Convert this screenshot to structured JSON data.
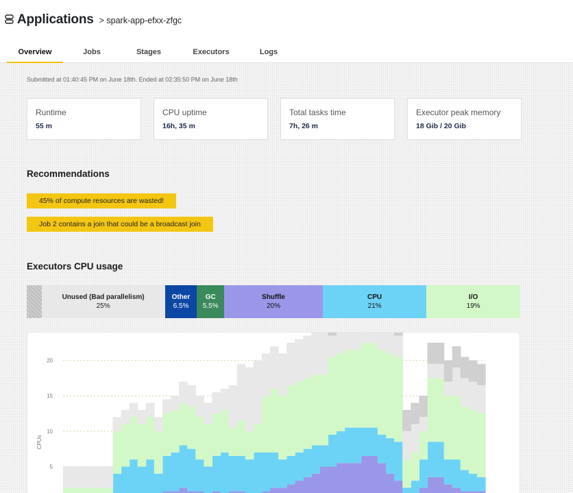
{
  "header": {
    "title": "Applications",
    "breadcrumb": "> spark-app-efxx-zfgc",
    "icon": "server-stack-icon"
  },
  "tabs": [
    {
      "label": "Overview",
      "active": true
    },
    {
      "label": "Jobs",
      "active": false
    },
    {
      "label": "Stages",
      "active": false
    },
    {
      "label": "Executors",
      "active": false
    },
    {
      "label": "Logs",
      "active": false
    }
  ],
  "submitted_text": "Submitted at 01:40:45 PM on June 18th. Ended at 02:35:50 PM on June 18th",
  "cards": [
    {
      "label": "Runtime",
      "value": "55 m"
    },
    {
      "label": "CPU uptime",
      "value": "16h, 35 m"
    },
    {
      "label": "Total tasks time",
      "value": "7h, 26 m"
    },
    {
      "label": "Executor peak memory",
      "value": "18 Gib / 20 Gib"
    }
  ],
  "recommendations": {
    "title": "Recommendations",
    "items": [
      "45% of compute resources are wasted!",
      "Job 2 contains a join that could be a broadcast join"
    ]
  },
  "cpu_usage": {
    "title": "Executors CPU usage",
    "segments": [
      {
        "name": "",
        "pct": "",
        "share": 3,
        "color": "#c8c8c8",
        "text": "#222"
      },
      {
        "name": "Unused (Bad parallelism)",
        "pct": "25%",
        "share": 25,
        "color": "#e8e8e8",
        "text": "#222"
      },
      {
        "name": "Other",
        "pct": "6.5%",
        "share": 6.5,
        "color": "#0b47a3",
        "text": "#ffffff"
      },
      {
        "name": "GC",
        "pct": "5.5%",
        "share": 5.5,
        "color": "#3a8a5c",
        "text": "#ffffff"
      },
      {
        "name": "Shuffle",
        "pct": "20%",
        "share": 20,
        "color": "#9b97e8",
        "text": "#111"
      },
      {
        "name": "CPU",
        "pct": "21%",
        "share": 21,
        "color": "#6dd3f6",
        "text": "#111"
      },
      {
        "name": "I/O",
        "pct": "19%",
        "share": 19,
        "color": "#d3f8c8",
        "text": "#111"
      }
    ]
  },
  "chart_data": {
    "type": "area",
    "ylabel": "CPUs",
    "ylim": [
      0,
      22
    ],
    "yticks": [
      5,
      10,
      15,
      20
    ],
    "grid": "dashed horizontal",
    "series": [
      {
        "name": "GC",
        "color": "#3a8a5c",
        "values": [
          0,
          0,
          0,
          0,
          0,
          0,
          0,
          0,
          0,
          0,
          0,
          0,
          0,
          0,
          0,
          0,
          0,
          0,
          0,
          0,
          0,
          0,
          0,
          0,
          0,
          0,
          0,
          0,
          0,
          0,
          0,
          0,
          0,
          0,
          0,
          0,
          0.5,
          0.5,
          0.5,
          0,
          0,
          0,
          0,
          0,
          0,
          0,
          0,
          0,
          0,
          0,
          0
        ]
      },
      {
        "name": "Shuffle",
        "color": "#9b97e8",
        "values": [
          0.5,
          0.5,
          0.5,
          0.5,
          0.5,
          0.5,
          1,
          1,
          1,
          1,
          1,
          1,
          1.5,
          1.5,
          2,
          1.5,
          1.5,
          1,
          1.5,
          1,
          1.5,
          1.5,
          1,
          1,
          1.5,
          2,
          2,
          2.5,
          3,
          3.5,
          4,
          5,
          5,
          5.5,
          5.5,
          5.5,
          6,
          6,
          5,
          4,
          3,
          1,
          1,
          2,
          3.5,
          3.5,
          2.5,
          2,
          1.5,
          1.5,
          1.5
        ]
      },
      {
        "name": "CPU",
        "color": "#6dd3f6",
        "values": [
          0.5,
          0.5,
          0.5,
          0.5,
          0.5,
          0.5,
          3,
          4,
          5,
          4,
          5,
          3,
          5,
          5.5,
          6,
          6,
          4.5,
          4,
          5,
          6,
          5,
          5,
          5,
          6,
          5.5,
          5,
          4,
          4,
          4,
          4,
          4,
          3,
          4.5,
          4.5,
          5,
          5,
          4,
          4,
          4,
          5,
          5.5,
          1,
          2,
          4,
          5,
          5,
          3.5,
          4,
          3,
          2.5,
          2
        ]
      },
      {
        "name": "I/O",
        "color": "#d3f8c8",
        "values": [
          1,
          1,
          1,
          1,
          1,
          1,
          6,
          6,
          6,
          6,
          6,
          6,
          6,
          6,
          6,
          6,
          6,
          6,
          6,
          6,
          4,
          5,
          4,
          4,
          8,
          9,
          9,
          10,
          10,
          10,
          10,
          10,
          11,
          11,
          11,
          11,
          12,
          12,
          12,
          12,
          12,
          4,
          4,
          4,
          9,
          9,
          9,
          9,
          9,
          9,
          9
        ]
      },
      {
        "name": "Unused (Bad parallelism)",
        "color": "#e8e8e8",
        "values": [
          3,
          3,
          3,
          3,
          3,
          3,
          2,
          2,
          2,
          2,
          2,
          2,
          2,
          2,
          3,
          3,
          3,
          3,
          3,
          3,
          6,
          8,
          9,
          9,
          6,
          6,
          6,
          6,
          6,
          6,
          6,
          6,
          3,
          3,
          3,
          3,
          3,
          3,
          3,
          3,
          3,
          4,
          4,
          2,
          2,
          2,
          2,
          4,
          4,
          4,
          4
        ]
      },
      {
        "name": "Other",
        "color": "#d0d0d0",
        "values": [
          0,
          0,
          0,
          0,
          0,
          0,
          0,
          0,
          0,
          0,
          0,
          0,
          0,
          0,
          0,
          0,
          0,
          0,
          0,
          0,
          0,
          0,
          0,
          0,
          0,
          0,
          0,
          0,
          0,
          0,
          0,
          0,
          2,
          2,
          2,
          2,
          2,
          2,
          2,
          2,
          2,
          3,
          3,
          3,
          3,
          3,
          3,
          3,
          3,
          3,
          3
        ]
      }
    ]
  }
}
